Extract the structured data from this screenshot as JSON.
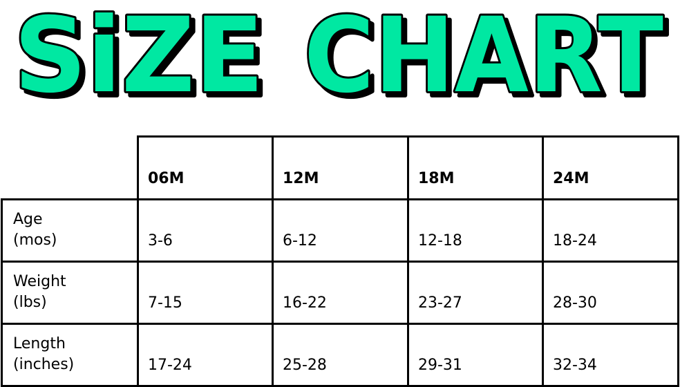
{
  "title": {
    "word1": "SiZE",
    "word2": "CHART",
    "fill_color": "#00E8A2",
    "outline_color": "#000000"
  },
  "chart_data": {
    "type": "table",
    "title": "SiZE CHART",
    "columns": [
      "06M",
      "12M",
      "18M",
      "24M"
    ],
    "rows": [
      {
        "label_line1": "Age",
        "label_line2": "(mos)",
        "values": [
          "3-6",
          "6-12",
          "12-18",
          "18-24"
        ]
      },
      {
        "label_line1": "Weight",
        "label_line2": "(lbs)",
        "values": [
          "7-15",
          "16-22",
          "23-27",
          "28-30"
        ]
      },
      {
        "label_line1": "Length",
        "label_line2": "(inches)",
        "values": [
          "17-24",
          "25-28",
          "29-31",
          "32-34"
        ]
      }
    ]
  }
}
